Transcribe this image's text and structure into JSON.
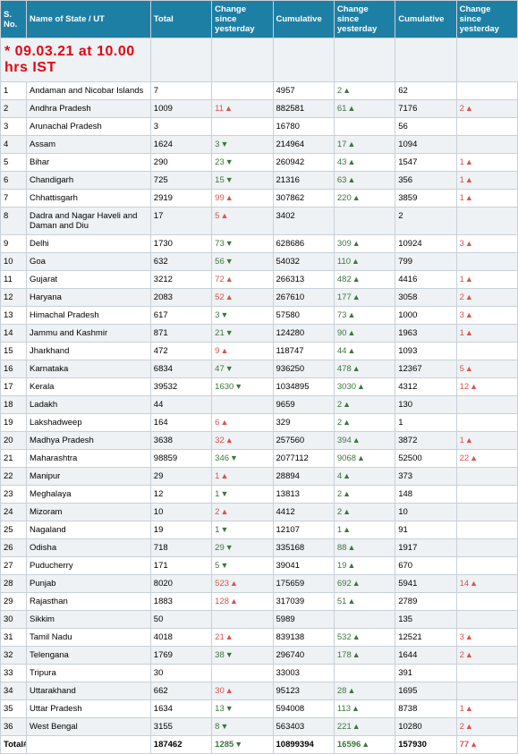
{
  "timestamp": "* 09.03.21 at 10.00 hrs IST",
  "header": {
    "sno": "S. No.",
    "state": "Name of State / UT",
    "total": "Total",
    "change": "Change since yesterday",
    "cumulative": "Cumulative"
  },
  "colors": {
    "header_bg": "#1e7fa5",
    "header_fg": "#ffffff",
    "row_alt": "#eef2f4",
    "up": "#d9534f",
    "down": "#3c763d",
    "cum_up": "#3c763d",
    "timestamp": "#e30613",
    "border": "#c8d0d8"
  },
  "totals": {
    "label": "Total#",
    "total": "187462",
    "chg1": {
      "val": "1285",
      "dir": "down"
    },
    "cum1": "10899394",
    "chg2": {
      "val": "16596",
      "dir": "up"
    },
    "cum2": "157930",
    "chg3": {
      "val": "77",
      "dir": "up"
    }
  },
  "rows": [
    {
      "n": "1",
      "state": "Andaman and Nicobar Islands",
      "total": "7",
      "chg1": null,
      "cum1": "4957",
      "chg2": {
        "val": "2",
        "dir": "up"
      },
      "cum2": "62",
      "chg3": null
    },
    {
      "n": "2",
      "state": "Andhra Pradesh",
      "total": "1009",
      "chg1": {
        "val": "11",
        "dir": "up"
      },
      "cum1": "882581",
      "chg2": {
        "val": "61",
        "dir": "up"
      },
      "cum2": "7176",
      "chg3": {
        "val": "2",
        "dir": "up"
      }
    },
    {
      "n": "3",
      "state": "Arunachal Pradesh",
      "total": "3",
      "chg1": null,
      "cum1": "16780",
      "chg2": null,
      "cum2": "56",
      "chg3": null
    },
    {
      "n": "4",
      "state": "Assam",
      "total": "1624",
      "chg1": {
        "val": "3",
        "dir": "down"
      },
      "cum1": "214964",
      "chg2": {
        "val": "17",
        "dir": "up"
      },
      "cum2": "1094",
      "chg3": null
    },
    {
      "n": "5",
      "state": "Bihar",
      "total": "290",
      "chg1": {
        "val": "23",
        "dir": "down"
      },
      "cum1": "260942",
      "chg2": {
        "val": "43",
        "dir": "up"
      },
      "cum2": "1547",
      "chg3": {
        "val": "1",
        "dir": "up"
      }
    },
    {
      "n": "6",
      "state": "Chandigarh",
      "total": "725",
      "chg1": {
        "val": "15",
        "dir": "down"
      },
      "cum1": "21316",
      "chg2": {
        "val": "63",
        "dir": "up"
      },
      "cum2": "356",
      "chg3": {
        "val": "1",
        "dir": "up"
      }
    },
    {
      "n": "7",
      "state": "Chhattisgarh",
      "total": "2919",
      "chg1": {
        "val": "99",
        "dir": "up"
      },
      "cum1": "307862",
      "chg2": {
        "val": "220",
        "dir": "up"
      },
      "cum2": "3859",
      "chg3": {
        "val": "1",
        "dir": "up"
      }
    },
    {
      "n": "8",
      "state": "Dadra and Nagar Haveli and Daman and Diu",
      "total": "17",
      "chg1": {
        "val": "5",
        "dir": "up"
      },
      "cum1": "3402",
      "chg2": null,
      "cum2": "2",
      "chg3": null
    },
    {
      "n": "9",
      "state": "Delhi",
      "total": "1730",
      "chg1": {
        "val": "73",
        "dir": "down"
      },
      "cum1": "628686",
      "chg2": {
        "val": "309",
        "dir": "up"
      },
      "cum2": "10924",
      "chg3": {
        "val": "3",
        "dir": "up"
      }
    },
    {
      "n": "10",
      "state": "Goa",
      "total": "632",
      "chg1": {
        "val": "56",
        "dir": "down"
      },
      "cum1": "54032",
      "chg2": {
        "val": "110",
        "dir": "up"
      },
      "cum2": "799",
      "chg3": null
    },
    {
      "n": "11",
      "state": "Gujarat",
      "total": "3212",
      "chg1": {
        "val": "72",
        "dir": "up"
      },
      "cum1": "266313",
      "chg2": {
        "val": "482",
        "dir": "up"
      },
      "cum2": "4416",
      "chg3": {
        "val": "1",
        "dir": "up"
      }
    },
    {
      "n": "12",
      "state": "Haryana",
      "total": "2083",
      "chg1": {
        "val": "52",
        "dir": "up"
      },
      "cum1": "267610",
      "chg2": {
        "val": "177",
        "dir": "up"
      },
      "cum2": "3058",
      "chg3": {
        "val": "2",
        "dir": "up"
      }
    },
    {
      "n": "13",
      "state": "Himachal Pradesh",
      "total": "617",
      "chg1": {
        "val": "3",
        "dir": "down"
      },
      "cum1": "57580",
      "chg2": {
        "val": "73",
        "dir": "up"
      },
      "cum2": "1000",
      "chg3": {
        "val": "3",
        "dir": "up"
      }
    },
    {
      "n": "14",
      "state": "Jammu and Kashmir",
      "total": "871",
      "chg1": {
        "val": "21",
        "dir": "down"
      },
      "cum1": "124280",
      "chg2": {
        "val": "90",
        "dir": "up"
      },
      "cum2": "1963",
      "chg3": {
        "val": "1",
        "dir": "up"
      }
    },
    {
      "n": "15",
      "state": "Jharkhand",
      "total": "472",
      "chg1": {
        "val": "9",
        "dir": "up"
      },
      "cum1": "118747",
      "chg2": {
        "val": "44",
        "dir": "up"
      },
      "cum2": "1093",
      "chg3": null
    },
    {
      "n": "16",
      "state": "Karnataka",
      "total": "6834",
      "chg1": {
        "val": "47",
        "dir": "down"
      },
      "cum1": "936250",
      "chg2": {
        "val": "478",
        "dir": "up"
      },
      "cum2": "12367",
      "chg3": {
        "val": "5",
        "dir": "up"
      }
    },
    {
      "n": "17",
      "state": "Kerala",
      "total": "39532",
      "chg1": {
        "val": "1630",
        "dir": "down"
      },
      "cum1": "1034895",
      "chg2": {
        "val": "3030",
        "dir": "up"
      },
      "cum2": "4312",
      "chg3": {
        "val": "12",
        "dir": "up"
      }
    },
    {
      "n": "18",
      "state": "Ladakh",
      "total": "44",
      "chg1": null,
      "cum1": "9659",
      "chg2": {
        "val": "2",
        "dir": "up"
      },
      "cum2": "130",
      "chg3": null
    },
    {
      "n": "19",
      "state": "Lakshadweep",
      "total": "164",
      "chg1": {
        "val": "6",
        "dir": "up"
      },
      "cum1": "329",
      "chg2": {
        "val": "2",
        "dir": "up"
      },
      "cum2": "1",
      "chg3": null
    },
    {
      "n": "20",
      "state": "Madhya Pradesh",
      "total": "3638",
      "chg1": {
        "val": "32",
        "dir": "up"
      },
      "cum1": "257560",
      "chg2": {
        "val": "394",
        "dir": "up"
      },
      "cum2": "3872",
      "chg3": {
        "val": "1",
        "dir": "up"
      }
    },
    {
      "n": "21",
      "state": "Maharashtra",
      "total": "98859",
      "chg1": {
        "val": "346",
        "dir": "down"
      },
      "cum1": "2077112",
      "chg2": {
        "val": "9068",
        "dir": "up"
      },
      "cum2": "52500",
      "chg3": {
        "val": "22",
        "dir": "up"
      }
    },
    {
      "n": "22",
      "state": "Manipur",
      "total": "29",
      "chg1": {
        "val": "1",
        "dir": "up"
      },
      "cum1": "28894",
      "chg2": {
        "val": "4",
        "dir": "up"
      },
      "cum2": "373",
      "chg3": null
    },
    {
      "n": "23",
      "state": "Meghalaya",
      "total": "12",
      "chg1": {
        "val": "1",
        "dir": "down"
      },
      "cum1": "13813",
      "chg2": {
        "val": "2",
        "dir": "up"
      },
      "cum2": "148",
      "chg3": null
    },
    {
      "n": "24",
      "state": "Mizoram",
      "total": "10",
      "chg1": {
        "val": "2",
        "dir": "up"
      },
      "cum1": "4412",
      "chg2": {
        "val": "2",
        "dir": "up"
      },
      "cum2": "10",
      "chg3": null
    },
    {
      "n": "25",
      "state": "Nagaland",
      "total": "19",
      "chg1": {
        "val": "1",
        "dir": "down"
      },
      "cum1": "12107",
      "chg2": {
        "val": "1",
        "dir": "up"
      },
      "cum2": "91",
      "chg3": null
    },
    {
      "n": "26",
      "state": "Odisha",
      "total": "718",
      "chg1": {
        "val": "29",
        "dir": "down"
      },
      "cum1": "335168",
      "chg2": {
        "val": "88",
        "dir": "up"
      },
      "cum2": "1917",
      "chg3": null
    },
    {
      "n": "27",
      "state": "Puducherry",
      "total": "171",
      "chg1": {
        "val": "5",
        "dir": "down"
      },
      "cum1": "39041",
      "chg2": {
        "val": "19",
        "dir": "up"
      },
      "cum2": "670",
      "chg3": null
    },
    {
      "n": "28",
      "state": "Punjab",
      "total": "8020",
      "chg1": {
        "val": "523",
        "dir": "up"
      },
      "cum1": "175659",
      "chg2": {
        "val": "692",
        "dir": "up"
      },
      "cum2": "5941",
      "chg3": {
        "val": "14",
        "dir": "up"
      }
    },
    {
      "n": "29",
      "state": "Rajasthan",
      "total": "1883",
      "chg1": {
        "val": "128",
        "dir": "up"
      },
      "cum1": "317039",
      "chg2": {
        "val": "51",
        "dir": "up"
      },
      "cum2": "2789",
      "chg3": null
    },
    {
      "n": "30",
      "state": "Sikkim",
      "total": "50",
      "chg1": null,
      "cum1": "5989",
      "chg2": null,
      "cum2": "135",
      "chg3": null
    },
    {
      "n": "31",
      "state": "Tamil Nadu",
      "total": "4018",
      "chg1": {
        "val": "21",
        "dir": "up"
      },
      "cum1": "839138",
      "chg2": {
        "val": "532",
        "dir": "up"
      },
      "cum2": "12521",
      "chg3": {
        "val": "3",
        "dir": "up"
      }
    },
    {
      "n": "32",
      "state": "Telengana",
      "total": "1769",
      "chg1": {
        "val": "38",
        "dir": "down"
      },
      "cum1": "296740",
      "chg2": {
        "val": "178",
        "dir": "up"
      },
      "cum2": "1644",
      "chg3": {
        "val": "2",
        "dir": "up"
      }
    },
    {
      "n": "33",
      "state": "Tripura",
      "total": "30",
      "chg1": null,
      "cum1": "33003",
      "chg2": null,
      "cum2": "391",
      "chg3": null
    },
    {
      "n": "34",
      "state": "Uttarakhand",
      "total": "662",
      "chg1": {
        "val": "30",
        "dir": "up"
      },
      "cum1": "95123",
      "chg2": {
        "val": "28",
        "dir": "up"
      },
      "cum2": "1695",
      "chg3": null
    },
    {
      "n": "35",
      "state": "Uttar Pradesh",
      "total": "1634",
      "chg1": {
        "val": "13",
        "dir": "down"
      },
      "cum1": "594008",
      "chg2": {
        "val": "113",
        "dir": "up"
      },
      "cum2": "8738",
      "chg3": {
        "val": "1",
        "dir": "up"
      }
    },
    {
      "n": "36",
      "state": "West Bengal",
      "total": "3155",
      "chg1": {
        "val": "8",
        "dir": "down"
      },
      "cum1": "563403",
      "chg2": {
        "val": "221",
        "dir": "up"
      },
      "cum2": "10280",
      "chg3": {
        "val": "2",
        "dir": "up"
      }
    }
  ]
}
